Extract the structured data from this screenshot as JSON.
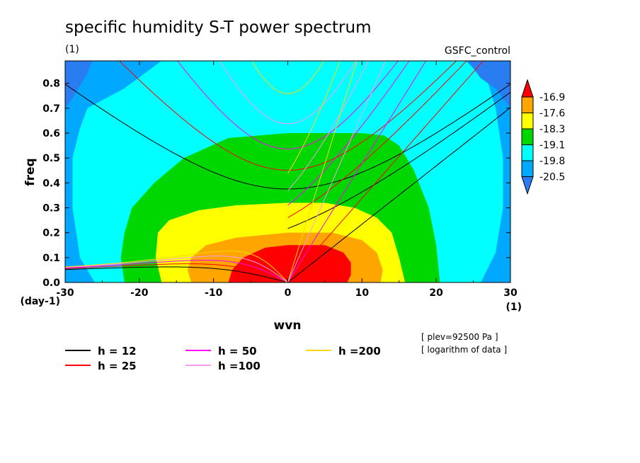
{
  "chart_data": {
    "type": "heatmap",
    "title": "specific humidity S-T power spectrum",
    "subtitle_left": "(1)",
    "subtitle_right": "GSFC_control",
    "xlabel": "wvn",
    "ylabel": "freq",
    "x_unit": "(1)",
    "y_unit": "(day-1)",
    "xlim": [
      -30,
      30
    ],
    "ylim": [
      0,
      0.89
    ],
    "x_ticks": [
      -30,
      -20,
      -10,
      0,
      10,
      20,
      30
    ],
    "x_tick_labels": [
      "-30",
      "-20",
      "-10",
      "0",
      "10",
      "20",
      "30"
    ],
    "y_ticks": [
      0,
      0.1,
      0.2,
      0.3,
      0.4,
      0.5,
      0.6,
      0.7,
      0.8
    ],
    "y_tick_labels": [
      "0.0",
      "0.1",
      "0.2",
      "0.3",
      "0.4",
      "0.5",
      "0.6",
      "0.7",
      "0.8"
    ],
    "color_levels": [
      "-16.9",
      "-17.6",
      "-18.3",
      "-19.1",
      "-19.8",
      "-20.5"
    ],
    "colors": [
      "#2a7df0",
      "#00a8ff",
      "#00ffff",
      "#00d700",
      "#ffff00",
      "#ffa500",
      "#ff0000"
    ],
    "contour_regions": [
      {
        "level": "above -20.5",
        "color": "#00a8ff",
        "points": [
          [
            -30,
            0
          ],
          [
            -30,
            0.89
          ],
          [
            -25,
            0.89
          ],
          [
            -22,
            0.89
          ],
          [
            22,
            0.89
          ],
          [
            24,
            0.89
          ],
          [
            30,
            0.89
          ],
          [
            30,
            0
          ]
        ]
      },
      {
        "level": "above -19.8",
        "color": "#00ffff",
        "points": [
          [
            -26,
            0
          ],
          [
            -28,
            0.1
          ],
          [
            -29,
            0.3
          ],
          [
            -29,
            0.5
          ],
          [
            -28,
            0.62
          ],
          [
            -27,
            0.7
          ],
          [
            -22,
            0.78
          ],
          [
            -17,
            0.89
          ],
          [
            24,
            0.89
          ],
          [
            27,
            0.8
          ],
          [
            28,
            0.7
          ],
          [
            29,
            0.5
          ],
          [
            29,
            0.3
          ],
          [
            28,
            0.12
          ],
          [
            26,
            0
          ]
        ]
      },
      {
        "level": "above -19.1",
        "color": "#00d700",
        "points": [
          [
            -22,
            0
          ],
          [
            -22.5,
            0.1
          ],
          [
            -22,
            0.2
          ],
          [
            -21,
            0.3
          ],
          [
            -18,
            0.4
          ],
          [
            -14,
            0.5
          ],
          [
            -8,
            0.58
          ],
          [
            0,
            0.6
          ],
          [
            10,
            0.6
          ],
          [
            13,
            0.59
          ],
          [
            15,
            0.55
          ],
          [
            17,
            0.45
          ],
          [
            19,
            0.3
          ],
          [
            20,
            0.15
          ],
          [
            20.5,
            0
          ]
        ]
      },
      {
        "level": "above -18.3",
        "color": "#ffff00",
        "points": [
          [
            -17,
            0
          ],
          [
            -17.8,
            0.1
          ],
          [
            -17.5,
            0.2
          ],
          [
            -16,
            0.25
          ],
          [
            -12,
            0.29
          ],
          [
            -7,
            0.31
          ],
          [
            0,
            0.32
          ],
          [
            5,
            0.32
          ],
          [
            9,
            0.3
          ],
          [
            12,
            0.26
          ],
          [
            14,
            0.2
          ],
          [
            15,
            0.1
          ],
          [
            15.8,
            0
          ]
        ]
      },
      {
        "level": "above -17.6",
        "color": "#ffa500",
        "points": [
          [
            -13,
            0
          ],
          [
            -13.5,
            0.05
          ],
          [
            -13,
            0.1
          ],
          [
            -11,
            0.15
          ],
          [
            -7,
            0.18
          ],
          [
            0,
            0.2
          ],
          [
            6,
            0.2
          ],
          [
            10,
            0.17
          ],
          [
            12,
            0.12
          ],
          [
            12.8,
            0.05
          ],
          [
            12.5,
            0
          ]
        ]
      },
      {
        "level": "above -16.9",
        "color": "#ff0000",
        "points": [
          [
            -8,
            0
          ],
          [
            -7.5,
            0.05
          ],
          [
            -6,
            0.1
          ],
          [
            -3,
            0.14
          ],
          [
            0,
            0.15
          ],
          [
            5,
            0.15
          ],
          [
            7.5,
            0.12
          ],
          [
            8.5,
            0.08
          ],
          [
            8.5,
            0.03
          ],
          [
            8,
            0
          ]
        ]
      }
    ],
    "corner_regions": [
      {
        "level": "below -20.5",
        "color": "#2a7df0",
        "points": [
          [
            -30,
            0.89
          ],
          [
            -30,
            0.7
          ],
          [
            -29,
            0.74
          ],
          [
            -28,
            0.79
          ],
          [
            -27,
            0.84
          ],
          [
            -26.3,
            0.89
          ]
        ]
      },
      {
        "level": "below -20.5",
        "color": "#2a7df0",
        "points": [
          [
            30,
            0.89
          ],
          [
            30,
            0.7
          ],
          [
            29,
            0.74
          ],
          [
            28,
            0.78
          ],
          [
            26,
            0.82
          ],
          [
            25,
            0.86
          ],
          [
            24.3,
            0.89
          ]
        ]
      }
    ],
    "series": [
      {
        "name": "h = 12",
        "equivalent_depth": 12,
        "color": "#000000"
      },
      {
        "name": "h = 25",
        "equivalent_depth": 25,
        "color": "#ff0000"
      },
      {
        "name": "h = 50",
        "equivalent_depth": 50,
        "color": "#ff00ff"
      },
      {
        "name": "h =100",
        "equivalent_depth": 100,
        "color": "#ff99ee"
      },
      {
        "name": "h =200",
        "equivalent_depth": 200,
        "color": "#ffd800"
      }
    ],
    "legend_placement": "bottom",
    "notes": [
      "[ plev=92500 Pa ]",
      "[ logarithm of data ]"
    ],
    "grid": false
  }
}
